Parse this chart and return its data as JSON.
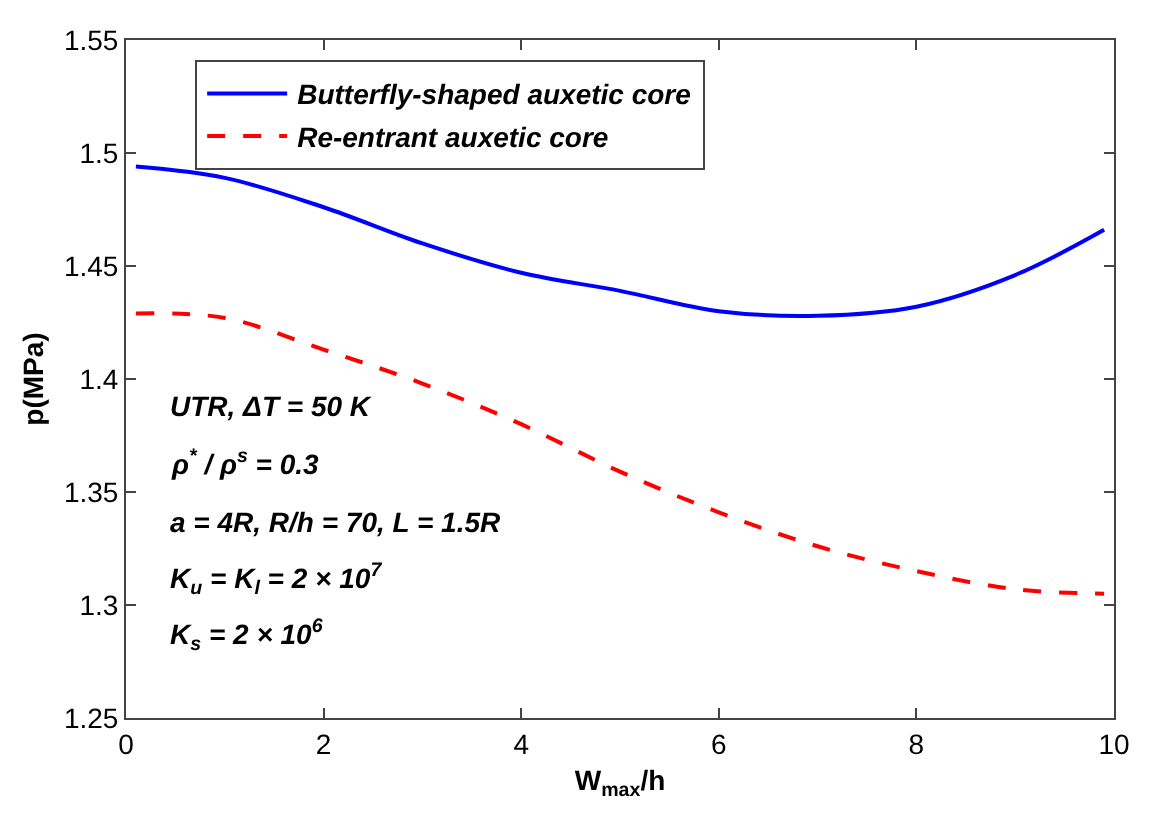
{
  "chart_data": {
    "type": "line",
    "xlabel": "W$_{max}$/h",
    "ylabel": "p(MPa)",
    "x": [
      0.1,
      1,
      2,
      3,
      4,
      5,
      6,
      7,
      8,
      9,
      9.9
    ],
    "series": [
      {
        "name": "Butterfly-shaped auxetic core",
        "color": "#0000ff",
        "line_style": "solid",
        "values": [
          1.494,
          1.489,
          1.476,
          1.46,
          1.447,
          1.439,
          1.43,
          1.428,
          1.432,
          1.446,
          1.466
        ]
      },
      {
        "name": "Re-entrant auxetic core",
        "color": "#ff0000",
        "line_style": "dashed",
        "values": [
          1.429,
          1.427,
          1.413,
          1.398,
          1.38,
          1.359,
          1.341,
          1.326,
          1.315,
          1.307,
          1.305
        ]
      }
    ],
    "xlim": [
      0,
      10
    ],
    "xticks": [
      0,
      2,
      4,
      6,
      8,
      10
    ],
    "ylim": [
      1.25,
      1.55
    ],
    "yticks": [
      1.25,
      1.3,
      1.35,
      1.4,
      1.45,
      1.5,
      1.55
    ],
    "legend": "top left",
    "marker": "none",
    "annotations": [
      "UTR, ΔT = 50 K",
      "ρ$^{*}$ / ρ$^{s}$ = 0.3",
      "a = 4R, R/h = 70, L = 1.5R",
      "K$_{u}$ = K$_{l}$ = 2 × 10$^{7}$",
      "K$_{s}$ = 2 × 10$^{6}$"
    ]
  }
}
